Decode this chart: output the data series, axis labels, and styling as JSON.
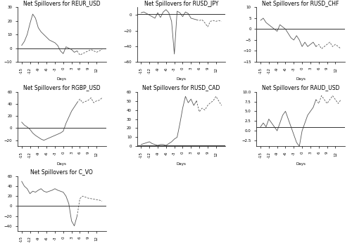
{
  "titles": [
    "Net Spillovers for REUR_USD",
    "Net Spillovers for RUSD_JPY",
    "Net Spillovers for RUSD_CHF",
    "Net Spillovers for RGBP_USD",
    "Net Spillovers for RUSD_CAD",
    "Net Spillovers for RAUD_USD",
    "Net Spillovers for C_VO"
  ],
  "xlabel": "Days",
  "hline_value": 0,
  "background_color": "#ffffff",
  "line_color": "#555555",
  "hline_color": "#333333",
  "title_fontsize": 5.5,
  "tick_fontsize": 4,
  "label_fontsize": 4,
  "series": {
    "REUR_USD": [
      2,
      5,
      10,
      18,
      25,
      22,
      15,
      12,
      10,
      8,
      6,
      5,
      4,
      2,
      -2,
      -4,
      1,
      0,
      -1,
      -3,
      -2,
      -5,
      -4,
      -3,
      -2,
      -1,
      -2,
      -3,
      -2,
      -1,
      -2
    ],
    "RUSD_JPY": [
      3,
      4,
      2,
      -1,
      -3,
      -2,
      -4,
      4,
      -2,
      5,
      7,
      3,
      -8,
      -50,
      5,
      3,
      -2,
      4,
      2,
      -4,
      -5,
      -6,
      -7,
      -6,
      -10,
      -15,
      -8,
      -7,
      -8
    ],
    "RUSD_CHF": [
      4,
      5,
      3,
      2,
      1,
      -1,
      -2,
      1,
      2,
      0,
      -2,
      -4,
      -5,
      -3,
      -6,
      -8,
      -7,
      -8,
      -7,
      -6,
      -8,
      -7,
      -9,
      -8
    ],
    "RGBP_USD": [
      10,
      5,
      0,
      -5,
      -10,
      -15,
      -18,
      -20,
      -22,
      -20,
      -18,
      -16,
      -14,
      -12,
      -10,
      -8,
      10,
      20,
      30,
      40,
      45,
      50,
      40,
      45
    ],
    "RUSD_CAD": [
      2,
      3,
      4,
      5,
      3,
      2,
      1,
      2,
      2,
      1,
      3,
      5,
      8,
      10,
      40,
      50,
      55,
      50,
      55,
      45,
      50,
      40,
      42
    ],
    "RAUD_USD": [
      1,
      2,
      1,
      3,
      2,
      1,
      0,
      2,
      4,
      5,
      3,
      1,
      -1,
      -3,
      -4,
      2,
      4,
      5,
      6,
      8,
      7,
      9,
      8,
      7
    ],
    "C_VO": [
      50,
      40,
      35,
      25,
      30,
      28,
      32,
      35,
      30,
      28,
      30,
      32,
      35,
      32,
      30,
      28,
      5,
      10,
      -30,
      -40,
      -20,
      15,
      20
    ]
  }
}
